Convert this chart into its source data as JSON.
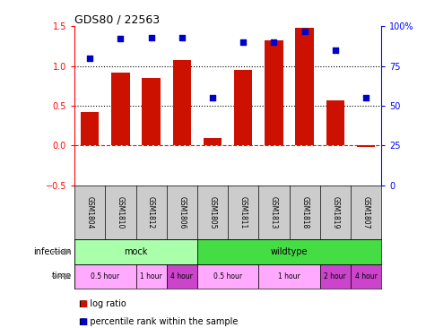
{
  "title": "GDS80 / 22563",
  "samples": [
    "GSM1804",
    "GSM1810",
    "GSM1812",
    "GSM1806",
    "GSM1805",
    "GSM1811",
    "GSM1813",
    "GSM1818",
    "GSM1819",
    "GSM1807"
  ],
  "log_ratio": [
    0.42,
    0.92,
    0.85,
    1.08,
    0.1,
    0.95,
    1.32,
    1.48,
    0.57,
    -0.02
  ],
  "percentile": [
    80,
    92,
    93,
    93,
    55,
    90,
    90,
    97,
    85,
    55
  ],
  "ylim_left": [
    -0.5,
    1.5
  ],
  "ylim_right": [
    0,
    100
  ],
  "yticks_left": [
    -0.5,
    0.0,
    0.5,
    1.0,
    1.5
  ],
  "yticks_right": [
    0,
    25,
    50,
    75,
    100
  ],
  "hlines": [
    0.0,
    0.5,
    1.0
  ],
  "bar_color": "#cc1100",
  "scatter_color": "#0000cc",
  "dashed_line_color": "#cc2200",
  "infection_groups": [
    {
      "label": "mock",
      "start": 0,
      "end": 4,
      "color": "#aaffaa"
    },
    {
      "label": "wildtype",
      "start": 4,
      "end": 10,
      "color": "#44dd44"
    }
  ],
  "time_groups": [
    {
      "label": "0.5 hour",
      "start": 0,
      "end": 2,
      "color": "#ffaaff"
    },
    {
      "label": "1 hour",
      "start": 2,
      "end": 3,
      "color": "#ffaaff"
    },
    {
      "label": "4 hour",
      "start": 3,
      "end": 4,
      "color": "#cc44cc"
    },
    {
      "label": "0.5 hour",
      "start": 4,
      "end": 6,
      "color": "#ffaaff"
    },
    {
      "label": "1 hour",
      "start": 6,
      "end": 8,
      "color": "#ffaaff"
    },
    {
      "label": "2 hour",
      "start": 8,
      "end": 9,
      "color": "#cc44cc"
    },
    {
      "label": "4 hour",
      "start": 9,
      "end": 10,
      "color": "#cc44cc"
    }
  ],
  "legend_items": [
    {
      "label": "log ratio",
      "color": "#cc1100"
    },
    {
      "label": "percentile rank within the sample",
      "color": "#0000cc"
    }
  ],
  "label_bg": "#cccccc",
  "gsm_label_fontsize": 5.5,
  "main_fontsize": 7,
  "title_fontsize": 9,
  "background_color": "#ffffff"
}
